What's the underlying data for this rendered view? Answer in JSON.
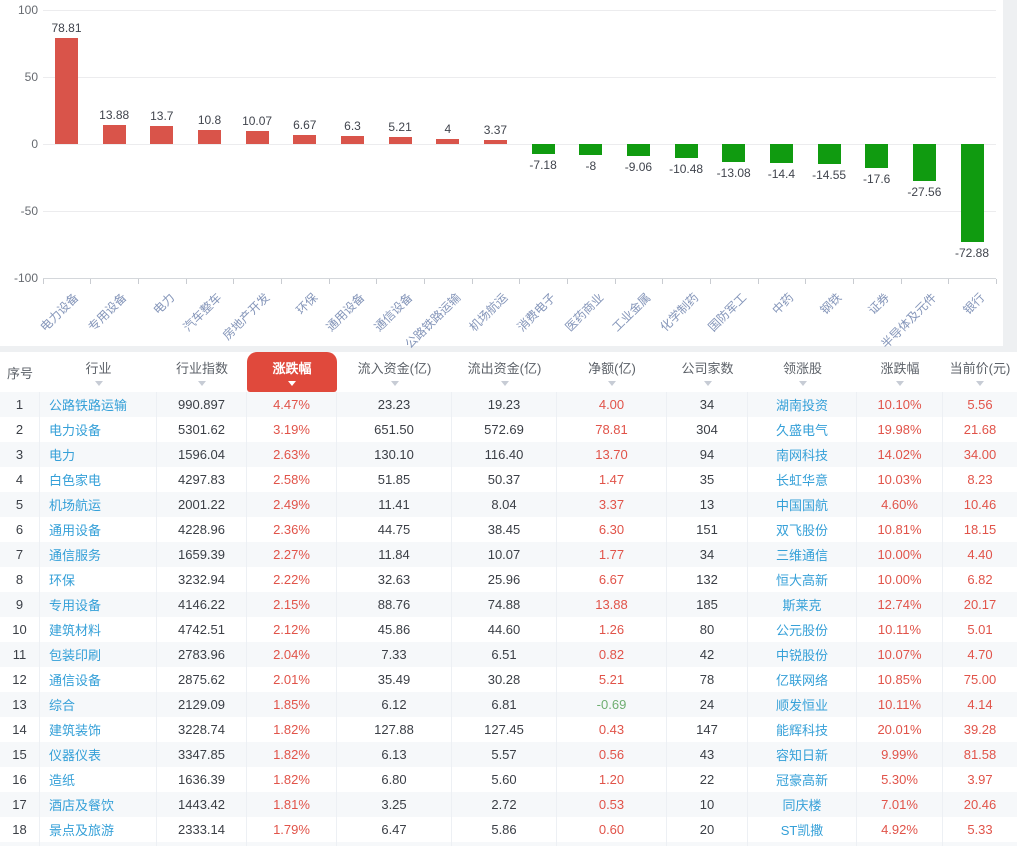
{
  "chart_data": {
    "type": "bar",
    "title": "",
    "xlabel": "",
    "ylabel": "",
    "ylim": [
      -100,
      100
    ],
    "ytick_labels": [
      "100",
      "50",
      "0",
      "-50",
      "-100"
    ],
    "yticks": [
      100,
      50,
      0,
      -50,
      -100
    ],
    "grid": true,
    "legend_position": "none",
    "categories": [
      "电力设备",
      "专用设备",
      "电力",
      "汽车整车",
      "房地产开发",
      "环保",
      "通用设备",
      "通信设备",
      "公路铁路运输",
      "机场航运",
      "消费电子",
      "医药商业",
      "工业金属",
      "化学制药",
      "国防军工",
      "中药",
      "钢铁",
      "证券",
      "半导体及元件",
      "银行"
    ],
    "values": [
      78.81,
      13.88,
      13.7,
      10.8,
      10.07,
      6.67,
      6.3,
      5.21,
      4,
      3.37,
      -7.18,
      -8,
      -9.06,
      -10.48,
      -13.08,
      -14.4,
      -14.55,
      -17.6,
      -27.56,
      -72.88
    ],
    "value_labels": [
      "78.81",
      "13.88",
      "13.7",
      "10.8",
      "10.07",
      "6.67",
      "6.3",
      "5.21",
      "4",
      "3.37",
      "-7.18",
      "-8",
      "-9.06",
      "-10.48",
      "-13.08",
      "-14.4",
      "-14.55",
      "-17.6",
      "-27.56",
      "-72.88"
    ],
    "colors": {
      "positive_bar": "#d9544a",
      "negative_bar": "#109b10"
    }
  },
  "table": {
    "sort_column_index": 3,
    "columns": [
      {
        "label": "序号",
        "key": "index",
        "sortable": false
      },
      {
        "label": "行业",
        "key": "industry",
        "sortable": true
      },
      {
        "label": "行业指数",
        "key": "industry-index",
        "sortable": true
      },
      {
        "label": "涨跌幅",
        "key": "change-pct",
        "sortable": true
      },
      {
        "label": "流入资金(亿)",
        "key": "inflow",
        "sortable": true
      },
      {
        "label": "流出资金(亿)",
        "key": "outflow",
        "sortable": true
      },
      {
        "label": "净额(亿)",
        "key": "net",
        "sortable": true
      },
      {
        "label": "公司家数",
        "key": "company-count",
        "sortable": true
      },
      {
        "label": "领涨股",
        "key": "leading-stock",
        "sortable": true
      },
      {
        "label": "涨跌幅",
        "key": "leader-change-pct",
        "sortable": true
      },
      {
        "label": "当前价(元)",
        "key": "current-price",
        "sortable": true
      }
    ],
    "rows": [
      [
        "1",
        "公路铁路运输",
        "990.897",
        "4.47%",
        "23.23",
        "19.23",
        "4.00",
        "34",
        "湖南投资",
        "10.10%",
        "5.56"
      ],
      [
        "2",
        "电力设备",
        "5301.62",
        "3.19%",
        "651.50",
        "572.69",
        "78.81",
        "304",
        "久盛电气",
        "19.98%",
        "21.68"
      ],
      [
        "3",
        "电力",
        "1596.04",
        "2.63%",
        "130.10",
        "116.40",
        "13.70",
        "94",
        "南网科技",
        "14.02%",
        "34.00"
      ],
      [
        "4",
        "白色家电",
        "4297.83",
        "2.58%",
        "51.85",
        "50.37",
        "1.47",
        "35",
        "长虹华意",
        "10.03%",
        "8.23"
      ],
      [
        "5",
        "机场航运",
        "2001.22",
        "2.49%",
        "11.41",
        "8.04",
        "3.37",
        "13",
        "中国国航",
        "4.60%",
        "10.46"
      ],
      [
        "6",
        "通用设备",
        "4228.96",
        "2.36%",
        "44.75",
        "38.45",
        "6.30",
        "151",
        "双飞股份",
        "10.81%",
        "18.15"
      ],
      [
        "7",
        "通信服务",
        "1659.39",
        "2.27%",
        "11.84",
        "10.07",
        "1.77",
        "34",
        "三维通信",
        "10.00%",
        "4.40"
      ],
      [
        "8",
        "环保",
        "3232.94",
        "2.22%",
        "32.63",
        "25.96",
        "6.67",
        "132",
        "恒大高新",
        "10.00%",
        "6.82"
      ],
      [
        "9",
        "专用设备",
        "4146.22",
        "2.15%",
        "88.76",
        "74.88",
        "13.88",
        "185",
        "斯莱克",
        "12.74%",
        "20.17"
      ],
      [
        "10",
        "建筑材料",
        "4742.51",
        "2.12%",
        "45.86",
        "44.60",
        "1.26",
        "80",
        "公元股份",
        "10.11%",
        "5.01"
      ],
      [
        "11",
        "包装印刷",
        "2783.96",
        "2.04%",
        "7.33",
        "6.51",
        "0.82",
        "42",
        "中锐股份",
        "10.07%",
        "4.70"
      ],
      [
        "12",
        "通信设备",
        "2875.62",
        "2.01%",
        "35.49",
        "30.28",
        "5.21",
        "78",
        "亿联网络",
        "10.85%",
        "75.00"
      ],
      [
        "13",
        "综合",
        "2129.09",
        "1.85%",
        "6.12",
        "6.81",
        "-0.69",
        "24",
        "顺发恒业",
        "10.11%",
        "4.14"
      ],
      [
        "14",
        "建筑装饰",
        "3228.74",
        "1.82%",
        "127.88",
        "127.45",
        "0.43",
        "147",
        "能辉科技",
        "20.01%",
        "39.28"
      ],
      [
        "15",
        "仪器仪表",
        "3347.85",
        "1.82%",
        "6.13",
        "5.57",
        "0.56",
        "43",
        "容知日新",
        "9.99%",
        "81.58"
      ],
      [
        "16",
        "造纸",
        "1636.39",
        "1.82%",
        "6.80",
        "5.60",
        "1.20",
        "22",
        "冠豪高新",
        "5.30%",
        "3.97"
      ],
      [
        "17",
        "酒店及餐饮",
        "1443.42",
        "1.81%",
        "3.25",
        "2.72",
        "0.53",
        "10",
        "同庆楼",
        "7.01%",
        "20.46"
      ],
      [
        "18",
        "景点及旅游",
        "2333.14",
        "1.79%",
        "6.47",
        "5.86",
        "0.60",
        "20",
        "ST凯撒",
        "4.92%",
        "5.33"
      ]
    ]
  }
}
